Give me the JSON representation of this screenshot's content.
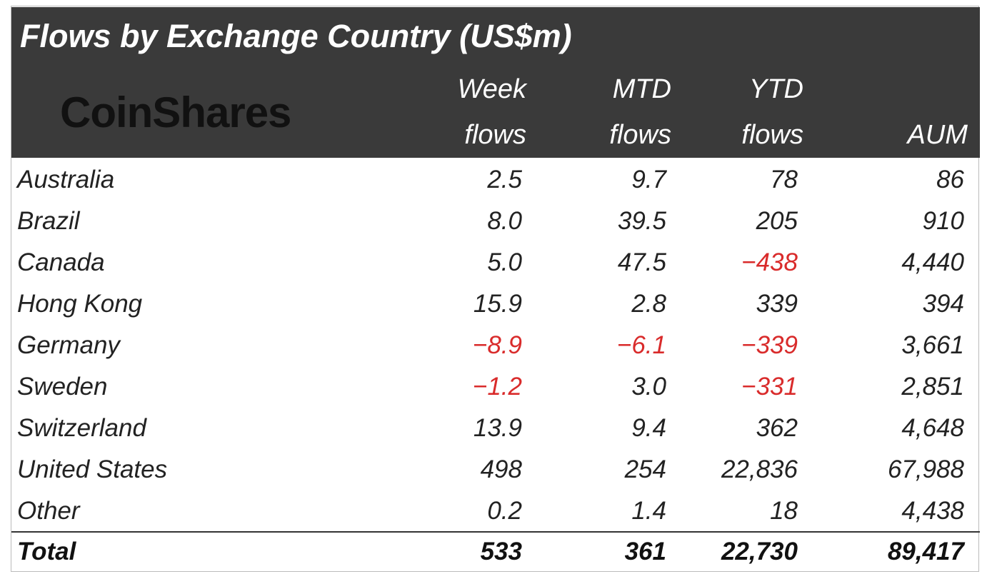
{
  "header": {
    "title": "Flows by Exchange Country (US$m)",
    "logo": "CoinShares",
    "columns": [
      [
        "Week",
        "flows"
      ],
      [
        "MTD",
        "flows"
      ],
      [
        "YTD",
        "flows"
      ],
      [
        "AUM"
      ]
    ]
  },
  "table": {
    "negative_color": "#d92b2b",
    "rows": [
      [
        "Australia",
        "2.5",
        "9.7",
        "78",
        "86"
      ],
      [
        "Brazil",
        "8.0",
        "39.5",
        "205",
        "910"
      ],
      [
        "Canada",
        "5.0",
        "47.5",
        "−438",
        "4,440"
      ],
      [
        "Hong Kong",
        "15.9",
        "2.8",
        "339",
        "394"
      ],
      [
        "Germany",
        "−8.9",
        "−6.1",
        "−339",
        "3,661"
      ],
      [
        "Sweden",
        "−1.2",
        "3.0",
        "−331",
        "2,851"
      ],
      [
        "Switzerland",
        "13.9",
        "9.4",
        "362",
        "4,648"
      ],
      [
        "United States",
        "498",
        "254",
        "22,836",
        "67,988"
      ],
      [
        "Other",
        "0.2",
        "1.4",
        "18",
        "4,438"
      ]
    ],
    "total": [
      "Total",
      "533",
      "361",
      "22,730",
      "89,417"
    ]
  }
}
